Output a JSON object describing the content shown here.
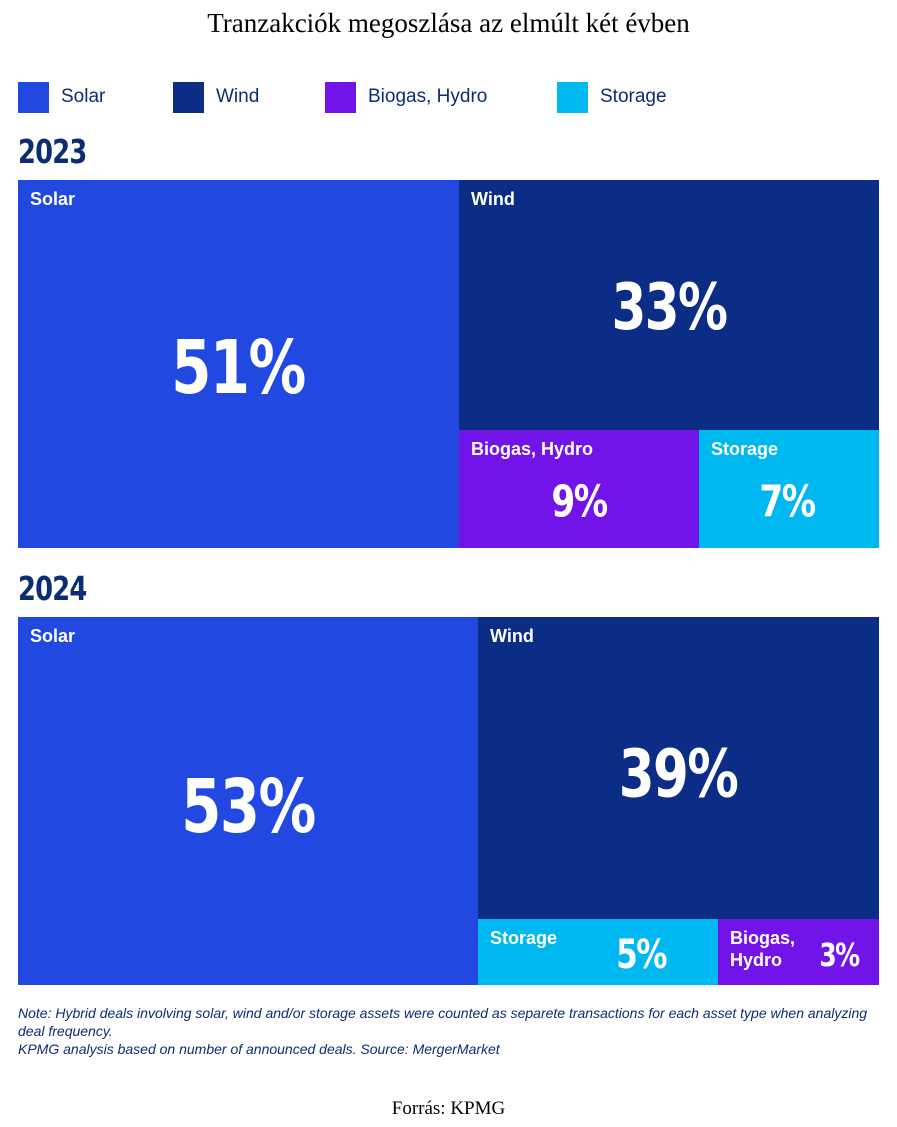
{
  "title": "Tranzakciók megoszlása az elmúlt két évben",
  "legend": [
    {
      "label": "Solar",
      "color": "#2149e2"
    },
    {
      "label": "Wind",
      "color": "#0c2d85"
    },
    {
      "label": "Biogas, Hydro",
      "color": "#7213ea"
    },
    {
      "label": "Storage",
      "color": "#00b8f0"
    }
  ],
  "chart_data": [
    {
      "type": "treemap",
      "title": "2023",
      "unit": "%",
      "categories": [
        "Solar",
        "Wind",
        "Biogas, Hydro",
        "Storage"
      ],
      "values": [
        51,
        33,
        9,
        7
      ],
      "value_labels": [
        "51%",
        "33%",
        "9%",
        "7%"
      ]
    },
    {
      "type": "treemap",
      "title": "2024",
      "unit": "%",
      "categories": [
        "Solar",
        "Wind",
        "Storage",
        "Biogas, Hydro"
      ],
      "values": [
        53,
        39,
        5,
        3
      ],
      "value_labels": [
        "53%",
        "39%",
        "5%",
        "3%"
      ]
    }
  ],
  "note": {
    "line1": "Note: Hybrid deals involving solar, wind and/or storage assets were counted as separete transactions for each asset type when analyzing deal frequency.",
    "line2": "KPMG analysis based on number of announced deals. Source: MergerMarket"
  },
  "source": "Forrás: KPMG"
}
